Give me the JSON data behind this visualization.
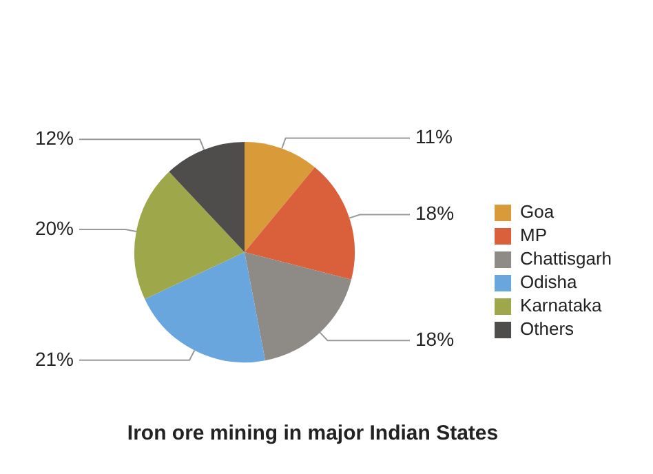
{
  "chart_data": {
    "type": "pie",
    "title": "Iron ore mining in major Indian States",
    "categories": [
      "Goa",
      "MP",
      "Chattisgarh",
      "Odisha",
      "Karnataka",
      "Others"
    ],
    "values": [
      11,
      18,
      18,
      21,
      20,
      12
    ],
    "value_labels": [
      "11%",
      "18%",
      "18%",
      "21%",
      "20%",
      "12%"
    ],
    "colors": [
      "#d99a3a",
      "#d9603b",
      "#8e8a85",
      "#6aa6de",
      "#9ea84a",
      "#4f4d4b"
    ],
    "legend": "right"
  }
}
